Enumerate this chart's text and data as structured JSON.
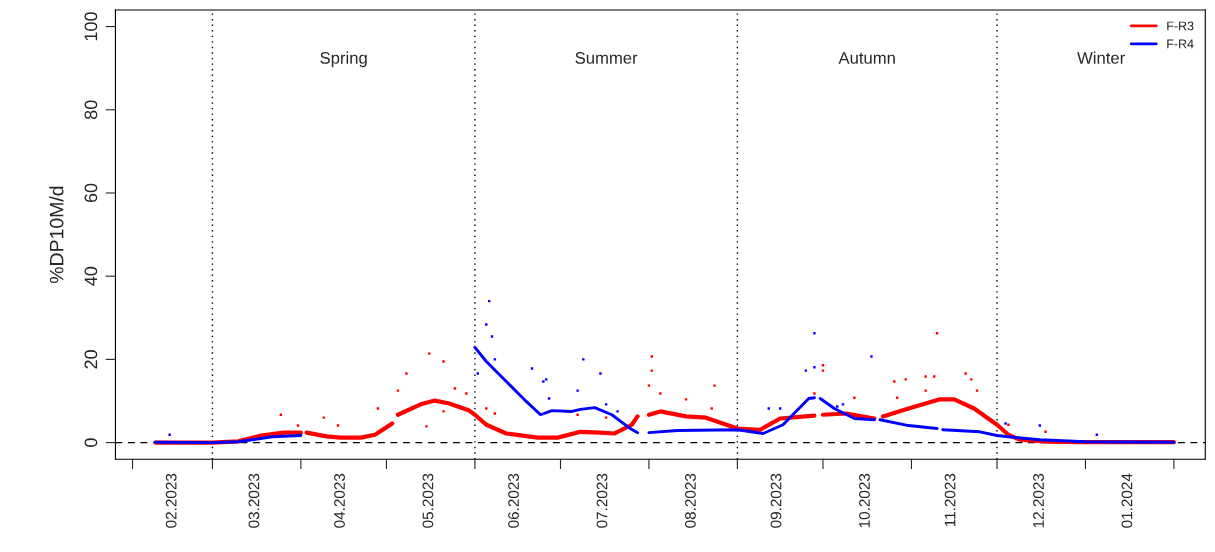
{
  "chart_data": {
    "type": "line",
    "ylabel": "%DP10M/d",
    "xlim": [
      "2023-01-26",
      "2024-02-12"
    ],
    "ylim": [
      -4,
      104
    ],
    "yticks": [
      0,
      20,
      40,
      60,
      80,
      100
    ],
    "xticks": [
      {
        "value": "2023-02-01",
        "label": null
      },
      {
        "value": "2023-02-15",
        "label": "02.2023"
      },
      {
        "value": "2023-03-01",
        "label": null
      },
      {
        "value": "2023-03-16",
        "label": "03.2023"
      },
      {
        "value": "2023-04-01",
        "label": null
      },
      {
        "value": "2023-04-15",
        "label": "04.2023"
      },
      {
        "value": "2023-05-01",
        "label": null
      },
      {
        "value": "2023-05-16",
        "label": "05.2023"
      },
      {
        "value": "2023-06-01",
        "label": null
      },
      {
        "value": "2023-06-15",
        "label": "06.2023"
      },
      {
        "value": "2023-07-01",
        "label": null
      },
      {
        "value": "2023-07-16",
        "label": "07.2023"
      },
      {
        "value": "2023-08-01",
        "label": null
      },
      {
        "value": "2023-08-16",
        "label": "08.2023"
      },
      {
        "value": "2023-09-01",
        "label": null
      },
      {
        "value": "2023-09-15",
        "label": "09.2023"
      },
      {
        "value": "2023-10-01",
        "label": null
      },
      {
        "value": "2023-10-16",
        "label": "10.2023"
      },
      {
        "value": "2023-11-01",
        "label": null
      },
      {
        "value": "2023-11-15",
        "label": "11.2023"
      },
      {
        "value": "2023-12-01",
        "label": null
      },
      {
        "value": "2023-12-16",
        "label": "12.2023"
      },
      {
        "value": "2024-01-01",
        "label": null
      },
      {
        "value": "2024-01-16",
        "label": "01.2024"
      },
      {
        "value": "2024-02-01",
        "label": null
      }
    ],
    "legend": "top right",
    "grid": false,
    "line_style": "solid",
    "ref_lines": [
      {
        "axis": "y",
        "value": 0,
        "color": "#000000",
        "line_style": "dashed"
      },
      {
        "axis": "x",
        "value": "2023-03-01",
        "color": "#000000",
        "line_style": "dotted"
      },
      {
        "axis": "x",
        "value": "2023-06-01",
        "color": "#000000",
        "line_style": "dotted"
      },
      {
        "axis": "x",
        "value": "2023-09-01",
        "color": "#000000",
        "line_style": "dotted"
      },
      {
        "axis": "x",
        "value": "2023-12-01",
        "color": "#000000",
        "line_style": "dotted"
      }
    ],
    "annotations": [
      "Spring",
      "Summer",
      "Autumn",
      "Winter"
    ],
    "series": [
      {
        "type": "scatter",
        "color": "#ff0000",
        "x": [
          "2023-03-25",
          "2023-03-31",
          "2023-04-09",
          "2023-04-14",
          "2023-04-28",
          "2023-05-05",
          "2023-05-08",
          "2023-05-15",
          "2023-05-16",
          "2023-05-21",
          "2023-05-21",
          "2023-05-25",
          "2023-05-29",
          "2023-06-05",
          "2023-06-08",
          "2023-07-07",
          "2023-07-17",
          "2023-08-01",
          "2023-08-02",
          "2023-08-02",
          "2023-08-05",
          "2023-08-14",
          "2023-08-23",
          "2023-08-24",
          "2023-09-28",
          "2023-10-01",
          "2023-10-01",
          "2023-10-12",
          "2023-10-26",
          "2023-10-27",
          "2023-10-30",
          "2023-11-06",
          "2023-11-06",
          "2023-11-09",
          "2023-11-10",
          "2023-11-20",
          "2023-11-22",
          "2023-11-24",
          "2023-12-05",
          "2023-12-18"
        ],
        "values": [
          6.7,
          4.1,
          6.0,
          4.1,
          8.2,
          12.5,
          16.6,
          3.9,
          21.4,
          19.5,
          7.5,
          13.0,
          11.8,
          8.2,
          7.0,
          6.7,
          6.0,
          13.7,
          20.7,
          17.3,
          11.8,
          10.4,
          8.2,
          13.7,
          11.8,
          18.6,
          17.3,
          10.8,
          14.7,
          10.8,
          15.2,
          15.9,
          12.5,
          15.9,
          26.3,
          16.6,
          15.2,
          12.5,
          4.3,
          2.6
        ],
        "marker": "square"
      },
      {
        "type": "scatter",
        "color": "#0000ff",
        "x": [
          "2023-02-14",
          "2023-06-02",
          "2023-06-05",
          "2023-06-06",
          "2023-06-07",
          "2023-06-08",
          "2023-06-21",
          "2023-06-25",
          "2023-06-26",
          "2023-06-27",
          "2023-07-07",
          "2023-07-09",
          "2023-07-15",
          "2023-07-17",
          "2023-07-21",
          "2023-09-12",
          "2023-09-16",
          "2023-09-25",
          "2023-09-28",
          "2023-09-28",
          "2023-10-06",
          "2023-10-08",
          "2023-10-18",
          "2023-12-04",
          "2023-12-16",
          "2024-01-05"
        ],
        "values": [
          1.9,
          16.6,
          28.4,
          34.0,
          25.5,
          20.0,
          17.8,
          14.7,
          15.2,
          10.6,
          12.5,
          20.0,
          16.6,
          9.2,
          7.5,
          8.2,
          8.2,
          17.3,
          26.3,
          18.1,
          8.7,
          9.2,
          20.7,
          4.6,
          4.1,
          1.9
        ],
        "marker": "square"
      },
      {
        "name": "F-R3",
        "color": "#ff0000",
        "x": [
          "2023-02-09",
          "2023-03-01",
          "2023-03-10",
          "2023-03-18",
          "2023-03-26",
          "2023-04-01",
          "2023-04-02",
          "2023-04-03",
          "2023-04-10",
          "2023-04-15",
          "2023-04-22",
          "2023-04-27",
          "2023-05-03",
          "2023-05-04",
          "2023-05-05",
          "2023-05-13",
          "2023-05-18",
          "2023-05-23",
          "2023-05-30",
          "2023-06-01",
          "2023-06-05",
          "2023-06-12",
          "2023-06-23",
          "2023-06-30",
          "2023-07-08",
          "2023-07-15",
          "2023-07-20",
          "2023-07-26",
          "2023-07-28",
          "2023-07-30",
          "2023-08-01",
          "2023-08-05",
          "2023-08-14",
          "2023-08-21",
          "2023-09-01",
          "2023-09-09",
          "2023-09-16",
          "2023-09-28",
          "2023-09-30",
          "2023-10-01",
          "2023-10-09",
          "2023-10-19",
          "2023-10-20",
          "2023-10-22",
          "2023-10-31",
          "2023-11-11",
          "2023-11-16",
          "2023-11-23",
          "2023-12-01",
          "2023-12-05",
          "2023-12-09",
          "2023-12-19",
          "2024-01-01",
          "2024-02-01"
        ],
        "values": [
          0,
          0,
          0.3,
          1.7,
          2.4,
          2.4,
          null,
          2.4,
          1.5,
          1.2,
          1.2,
          1.9,
          4.6,
          null,
          6.7,
          9.2,
          10.1,
          9.4,
          7.7,
          6.7,
          4.3,
          2.2,
          1.2,
          1.2,
          2.6,
          2.4,
          2.2,
          4.3,
          6.3,
          null,
          6.7,
          7.5,
          6.3,
          6.0,
          3.4,
          3.1,
          5.8,
          6.5,
          null,
          6.7,
          7.0,
          5.8,
          null,
          6.3,
          8.2,
          10.4,
          10.4,
          8.2,
          4.3,
          1.9,
          0.7,
          0.2,
          0.1,
          0.1
        ]
      },
      {
        "name": "F-R4",
        "color": "#0000ff",
        "x": [
          "2023-02-09",
          "2023-03-01",
          "2023-03-10",
          "2023-03-15",
          "2023-03-22",
          "2023-04-01",
          "2023-04-02",
          "2023-06-01",
          "2023-06-05",
          "2023-06-12",
          "2023-06-19",
          "2023-06-24",
          "2023-06-28",
          "2023-07-05",
          "2023-07-08",
          "2023-07-13",
          "2023-07-19",
          "2023-07-25",
          "2023-07-28",
          "2023-07-30",
          "2023-08-01",
          "2023-08-11",
          "2023-09-01",
          "2023-09-10",
          "2023-09-17",
          "2023-09-26",
          "2023-09-28",
          "2023-09-29",
          "2023-09-30",
          "2023-10-05",
          "2023-10-12",
          "2023-10-19",
          "2023-10-20",
          "2023-10-21",
          "2023-10-31",
          "2023-11-10",
          "2023-11-11",
          "2023-11-12",
          "2023-11-25",
          "2023-12-01",
          "2023-12-05",
          "2023-12-16",
          "2024-01-01",
          "2024-02-01"
        ],
        "values": [
          0.1,
          0,
          0.2,
          0.7,
          1.4,
          1.7,
          null,
          22.9,
          19.5,
          14.7,
          9.9,
          6.7,
          7.7,
          7.5,
          8.0,
          8.4,
          6.7,
          3.6,
          2.4,
          null,
          2.4,
          2.9,
          3.1,
          2.2,
          4.3,
          10.6,
          10.8,
          null,
          10.6,
          8.2,
          5.8,
          5.5,
          null,
          5.5,
          4.1,
          3.4,
          null,
          3.1,
          2.6,
          1.7,
          1.4,
          0.7,
          0.2,
          0.1
        ]
      }
    ]
  }
}
